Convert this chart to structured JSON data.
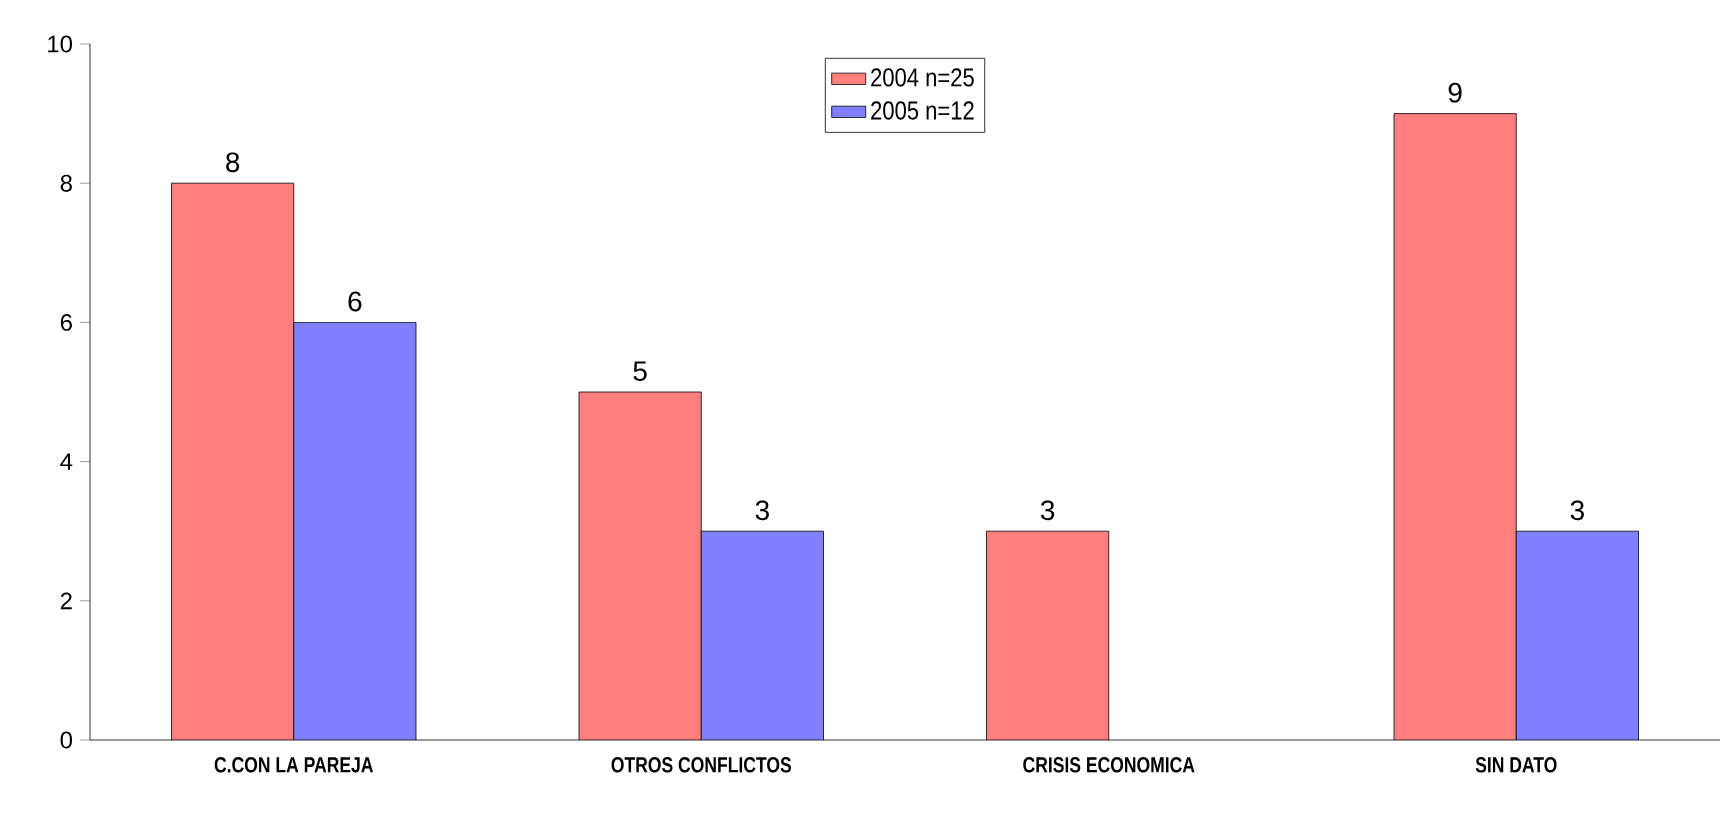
{
  "chart_data": {
    "type": "bar",
    "categories": [
      "C.CON LA PAREJA",
      "OTROS CONFLICTOS",
      "CRISIS ECONOMICA",
      "SIN DATO"
    ],
    "series": [
      {
        "name": "2004 n=25",
        "color": "#ff7f7f",
        "values": [
          8,
          5,
          3,
          9
        ]
      },
      {
        "name": "2005 n=12",
        "color": "#7f7fff",
        "values": [
          6,
          3,
          null,
          3
        ]
      }
    ],
    "ylim": [
      0,
      10
    ],
    "yticks": [
      0,
      2,
      4,
      6,
      8,
      10
    ],
    "data_labels": true,
    "legend": "top",
    "grid": false
  }
}
